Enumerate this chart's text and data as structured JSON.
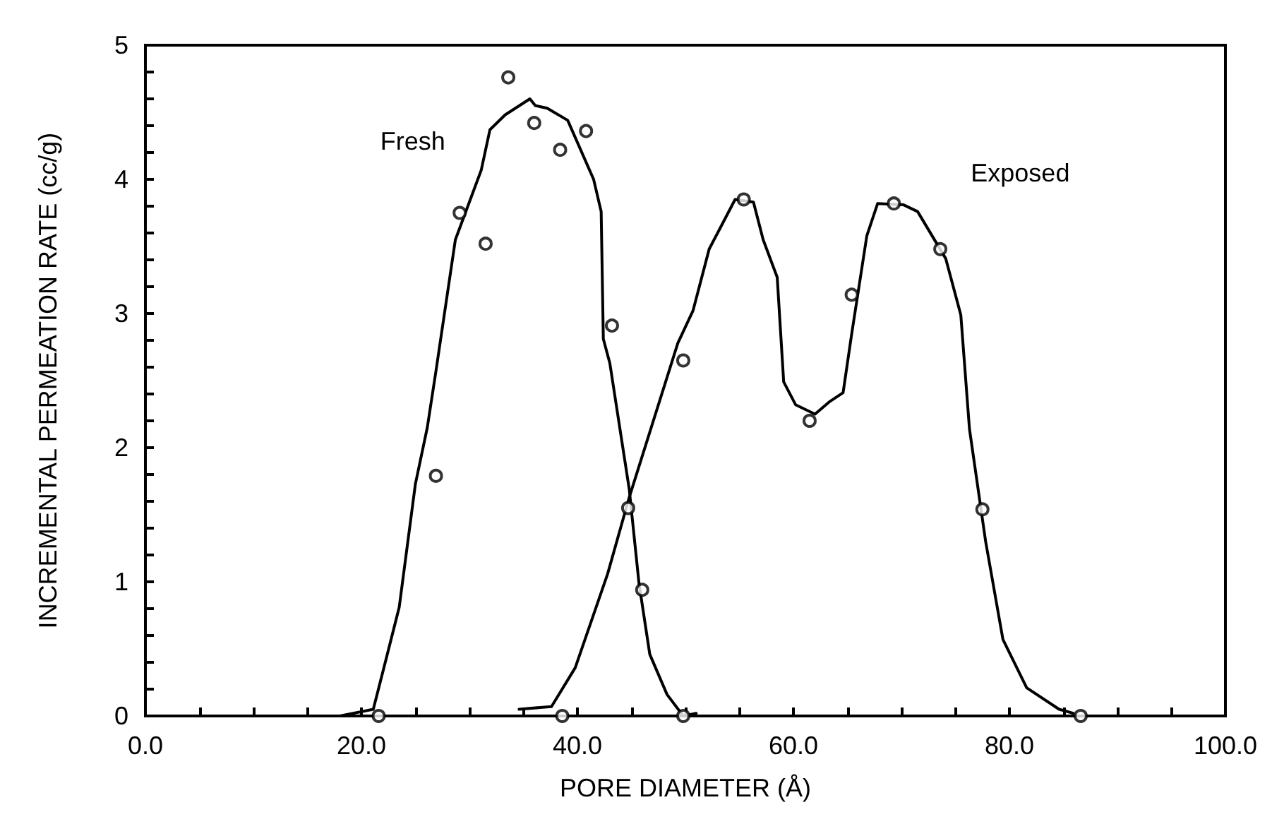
{
  "chart_data": {
    "type": "line",
    "xlabel": "PORE DIAMETER (Å)",
    "ylabel": "INCREMENTAL PERMEATION RATE (cc/g)",
    "xlim": [
      0,
      100
    ],
    "ylim": [
      0,
      5
    ],
    "xticks": [
      {
        "value": 0,
        "label": "0.0"
      },
      {
        "value": 5,
        "label": null
      },
      {
        "value": 10,
        "label": null
      },
      {
        "value": 15,
        "label": null
      },
      {
        "value": 20,
        "label": "20.0"
      },
      {
        "value": 25,
        "label": null
      },
      {
        "value": 30,
        "label": null
      },
      {
        "value": 35,
        "label": null
      },
      {
        "value": 40,
        "label": "40.0"
      },
      {
        "value": 45,
        "label": null
      },
      {
        "value": 50,
        "label": null
      },
      {
        "value": 55,
        "label": null
      },
      {
        "value": 60,
        "label": "60.0"
      },
      {
        "value": 65,
        "label": null
      },
      {
        "value": 70,
        "label": null
      },
      {
        "value": 75,
        "label": null
      },
      {
        "value": 80,
        "label": "80.0"
      },
      {
        "value": 85,
        "label": null
      },
      {
        "value": 90,
        "label": null
      },
      {
        "value": 95,
        "label": null
      },
      {
        "value": 100,
        "label": "100.0"
      }
    ],
    "yticks": [
      0,
      {
        "value": 0.2,
        "label": null
      },
      {
        "value": 0.4,
        "label": null
      },
      {
        "value": 0.6,
        "label": null
      },
      {
        "value": 0.8,
        "label": null
      },
      1,
      {
        "value": 1.2,
        "label": null
      },
      {
        "value": 1.4,
        "label": null
      },
      {
        "value": 1.6,
        "label": null
      },
      {
        "value": 1.8,
        "label": null
      },
      2,
      {
        "value": 2.2,
        "label": null
      },
      {
        "value": 2.4,
        "label": null
      },
      {
        "value": 2.6,
        "label": null
      },
      {
        "value": 2.8,
        "label": null
      },
      3,
      {
        "value": 3.2,
        "label": null
      },
      {
        "value": 3.4,
        "label": null
      },
      {
        "value": 3.6,
        "label": null
      },
      {
        "value": 3.8,
        "label": null
      },
      4,
      {
        "value": 4.2,
        "label": null
      },
      {
        "value": 4.4,
        "label": null
      },
      {
        "value": 4.6,
        "label": null
      },
      {
        "value": 4.8,
        "label": null
      },
      5
    ],
    "grid": false,
    "legend": false,
    "series": [
      {
        "name": "Fresh",
        "marker": "none",
        "color": "#000000",
        "x": [
          18,
          21.1,
          22.4,
          23.5,
          25.0,
          26.1,
          26.9,
          28.7,
          31.1,
          31.9,
          33.3,
          35.6,
          36.1,
          37.2,
          39.1,
          41.5,
          42.2,
          42.4,
          43.0,
          44.8,
          45.7,
          46.7,
          48.3,
          49.8,
          51.0
        ],
        "values": [
          0,
          0.05,
          0.46,
          0.81,
          1.73,
          2.15,
          2.57,
          3.55,
          4.07,
          4.37,
          4.48,
          4.6,
          4.55,
          4.53,
          4.44,
          4.0,
          3.76,
          2.81,
          2.63,
          1.69,
          0.99,
          0.46,
          0.16,
          0,
          0.02
        ]
      },
      {
        "name": "Exposed",
        "marker": "none",
        "color": "#000000",
        "x": [
          34.6,
          37.6,
          39.8,
          42.8,
          44.8,
          49.3,
          50.7,
          52.2,
          54.6,
          56.3,
          57.2,
          58.5,
          59.1,
          60.2,
          62.0,
          63.3,
          64.6,
          65.4,
          66.8,
          67.8,
          70.2,
          71.5,
          74.1,
          75.5,
          76.3,
          77.8,
          79.4,
          81.6,
          84.6,
          85.9
        ],
        "values": [
          0.05,
          0.07,
          0.36,
          1.06,
          1.63,
          2.78,
          3.02,
          3.48,
          3.85,
          3.83,
          3.55,
          3.27,
          2.49,
          2.32,
          2.25,
          2.34,
          2.41,
          2.85,
          3.58,
          3.82,
          3.81,
          3.76,
          3.41,
          2.99,
          2.14,
          1.3,
          0.57,
          0.21,
          0.05,
          0.02
        ]
      },
      {
        "type": "scatter",
        "marker": "circle",
        "color": "#000000",
        "x": [
          21.6,
          26.9,
          29.1,
          31.5,
          33.6,
          36.0,
          38.4,
          40.8,
          43.2,
          46.0,
          49.8
        ],
        "values": [
          0,
          1.79,
          3.75,
          3.52,
          4.76,
          4.42,
          4.22,
          4.36,
          2.91,
          0.94,
          0
        ]
      },
      {
        "type": "scatter",
        "marker": "circle",
        "color": "#000000",
        "x": [
          38.6,
          44.7,
          49.8,
          55.4,
          61.5,
          65.4,
          69.3,
          73.6,
          77.5,
          86.6
        ],
        "values": [
          0,
          1.55,
          2.65,
          3.85,
          2.2,
          3.14,
          3.82,
          3.48,
          1.54,
          0
        ]
      }
    ]
  }
}
